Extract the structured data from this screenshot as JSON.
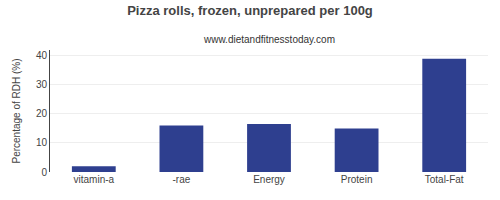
{
  "chart_data": {
    "type": "bar",
    "title": "Pizza rolls, frozen, unprepared per 100g",
    "subtitle": "www.dietandfitnesstoday.com",
    "categories": [
      "vitamin-a",
      "-rae",
      "Energy",
      "Protein",
      "Total-Fat"
    ],
    "values": [
      2,
      16,
      16.5,
      15,
      39
    ],
    "color": "#2e3f8f",
    "ylabel": "Percentage of RDH (%)",
    "ylim": [
      0,
      42
    ],
    "yticks": [
      0,
      10,
      20,
      30,
      40
    ],
    "grid": true
  }
}
